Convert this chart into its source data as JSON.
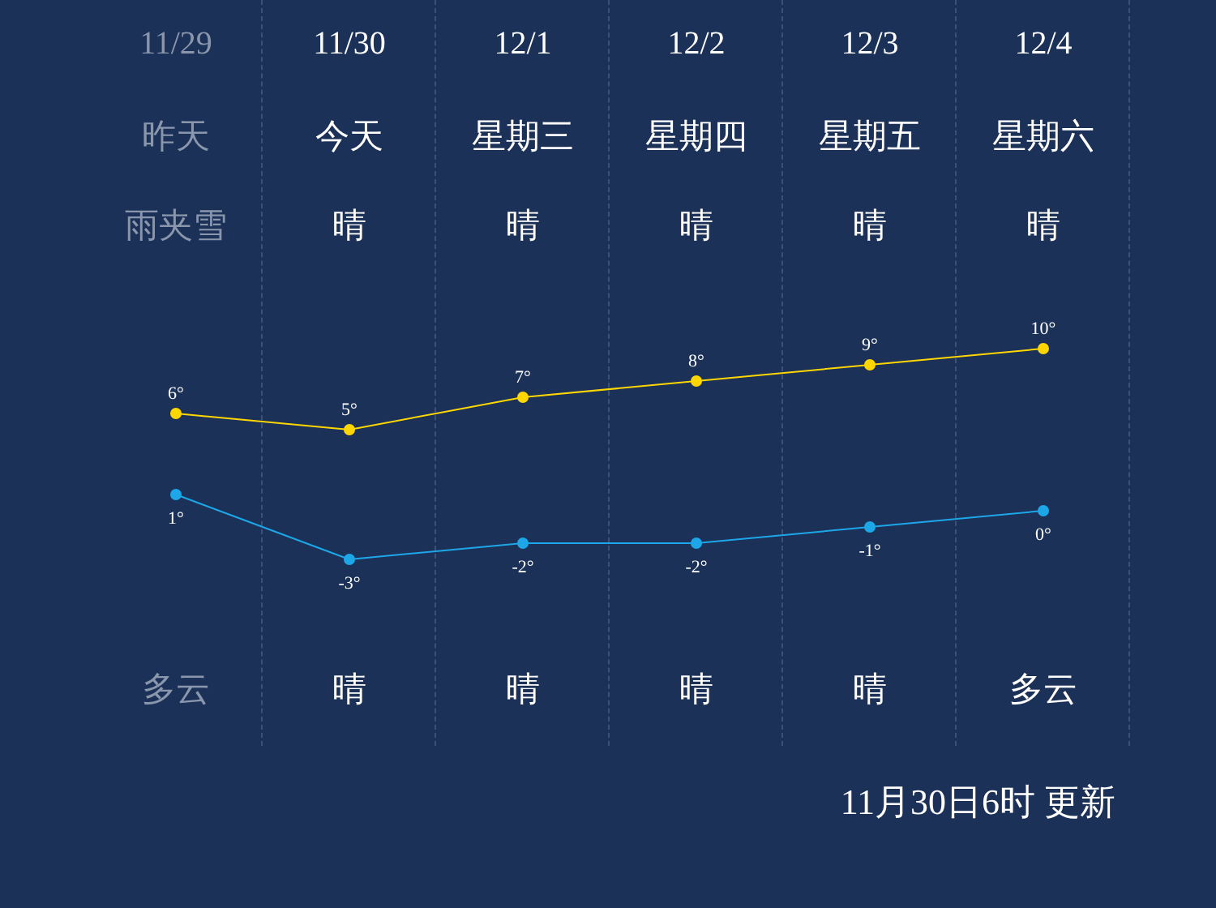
{
  "chart_data": {
    "type": "line",
    "categories": [
      "11/29",
      "11/30",
      "12/1",
      "12/2",
      "12/3",
      "12/4"
    ],
    "series": [
      {
        "color": "#ffd700",
        "values": [
          6,
          5,
          7,
          8,
          9,
          10
        ],
        "value_labels": [
          "6°",
          "5°",
          "7°",
          "8°",
          "9°",
          "10°"
        ]
      },
      {
        "color": "#1ea7e8",
        "values": [
          1,
          -3,
          -2,
          -2,
          -1,
          0
        ],
        "value_labels": [
          "1°",
          "-3°",
          "-2°",
          "-2°",
          "-1°",
          "0°"
        ]
      }
    ],
    "marker": "circle",
    "annotations": [
      "昨天",
      "今天",
      "星期三",
      "星期四",
      "星期五",
      "星期六",
      "雨夹雪",
      "晴",
      "晴",
      "晴",
      "晴",
      "晴",
      "多云",
      "晴",
      "晴",
      "晴",
      "晴",
      "多云",
      "11月30日6时 更新"
    ]
  }
}
